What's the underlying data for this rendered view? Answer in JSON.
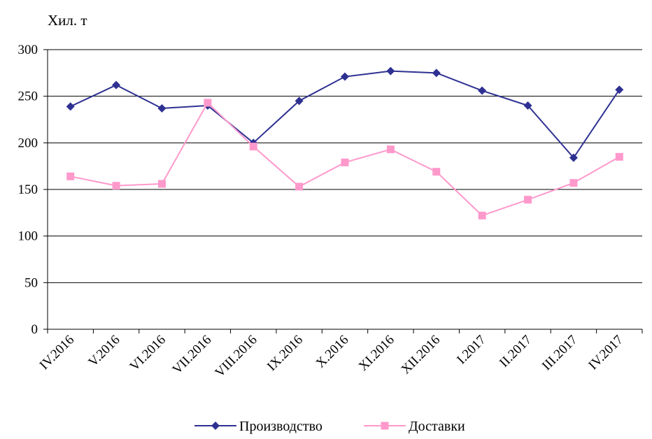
{
  "chart_data": {
    "type": "line",
    "unit_label": "Хил. т",
    "categories": [
      "IV.2016",
      "V.2016",
      "VI.2016",
      "VII.2016",
      "VIII.2016",
      "IX.2016",
      "X.2016",
      "XI.2016",
      "XII.2016",
      "I.2017",
      "II.2017",
      "III.2017",
      "IV.2017"
    ],
    "series": [
      {
        "name": "Производство",
        "color": "#2e3192",
        "marker": "diamond",
        "values": [
          239,
          262,
          237,
          240,
          200,
          245,
          271,
          277,
          275,
          256,
          240,
          184,
          257
        ]
      },
      {
        "name": "Доставки",
        "color": "#ff99cc",
        "marker": "square",
        "values": [
          164,
          154,
          156,
          243,
          196,
          153,
          179,
          193,
          169,
          122,
          139,
          157,
          185
        ]
      }
    ],
    "ylim": [
      0,
      300
    ],
    "yticks": [
      0,
      50,
      100,
      150,
      200,
      250,
      300
    ],
    "grid": true,
    "legend_position": "bottom"
  }
}
